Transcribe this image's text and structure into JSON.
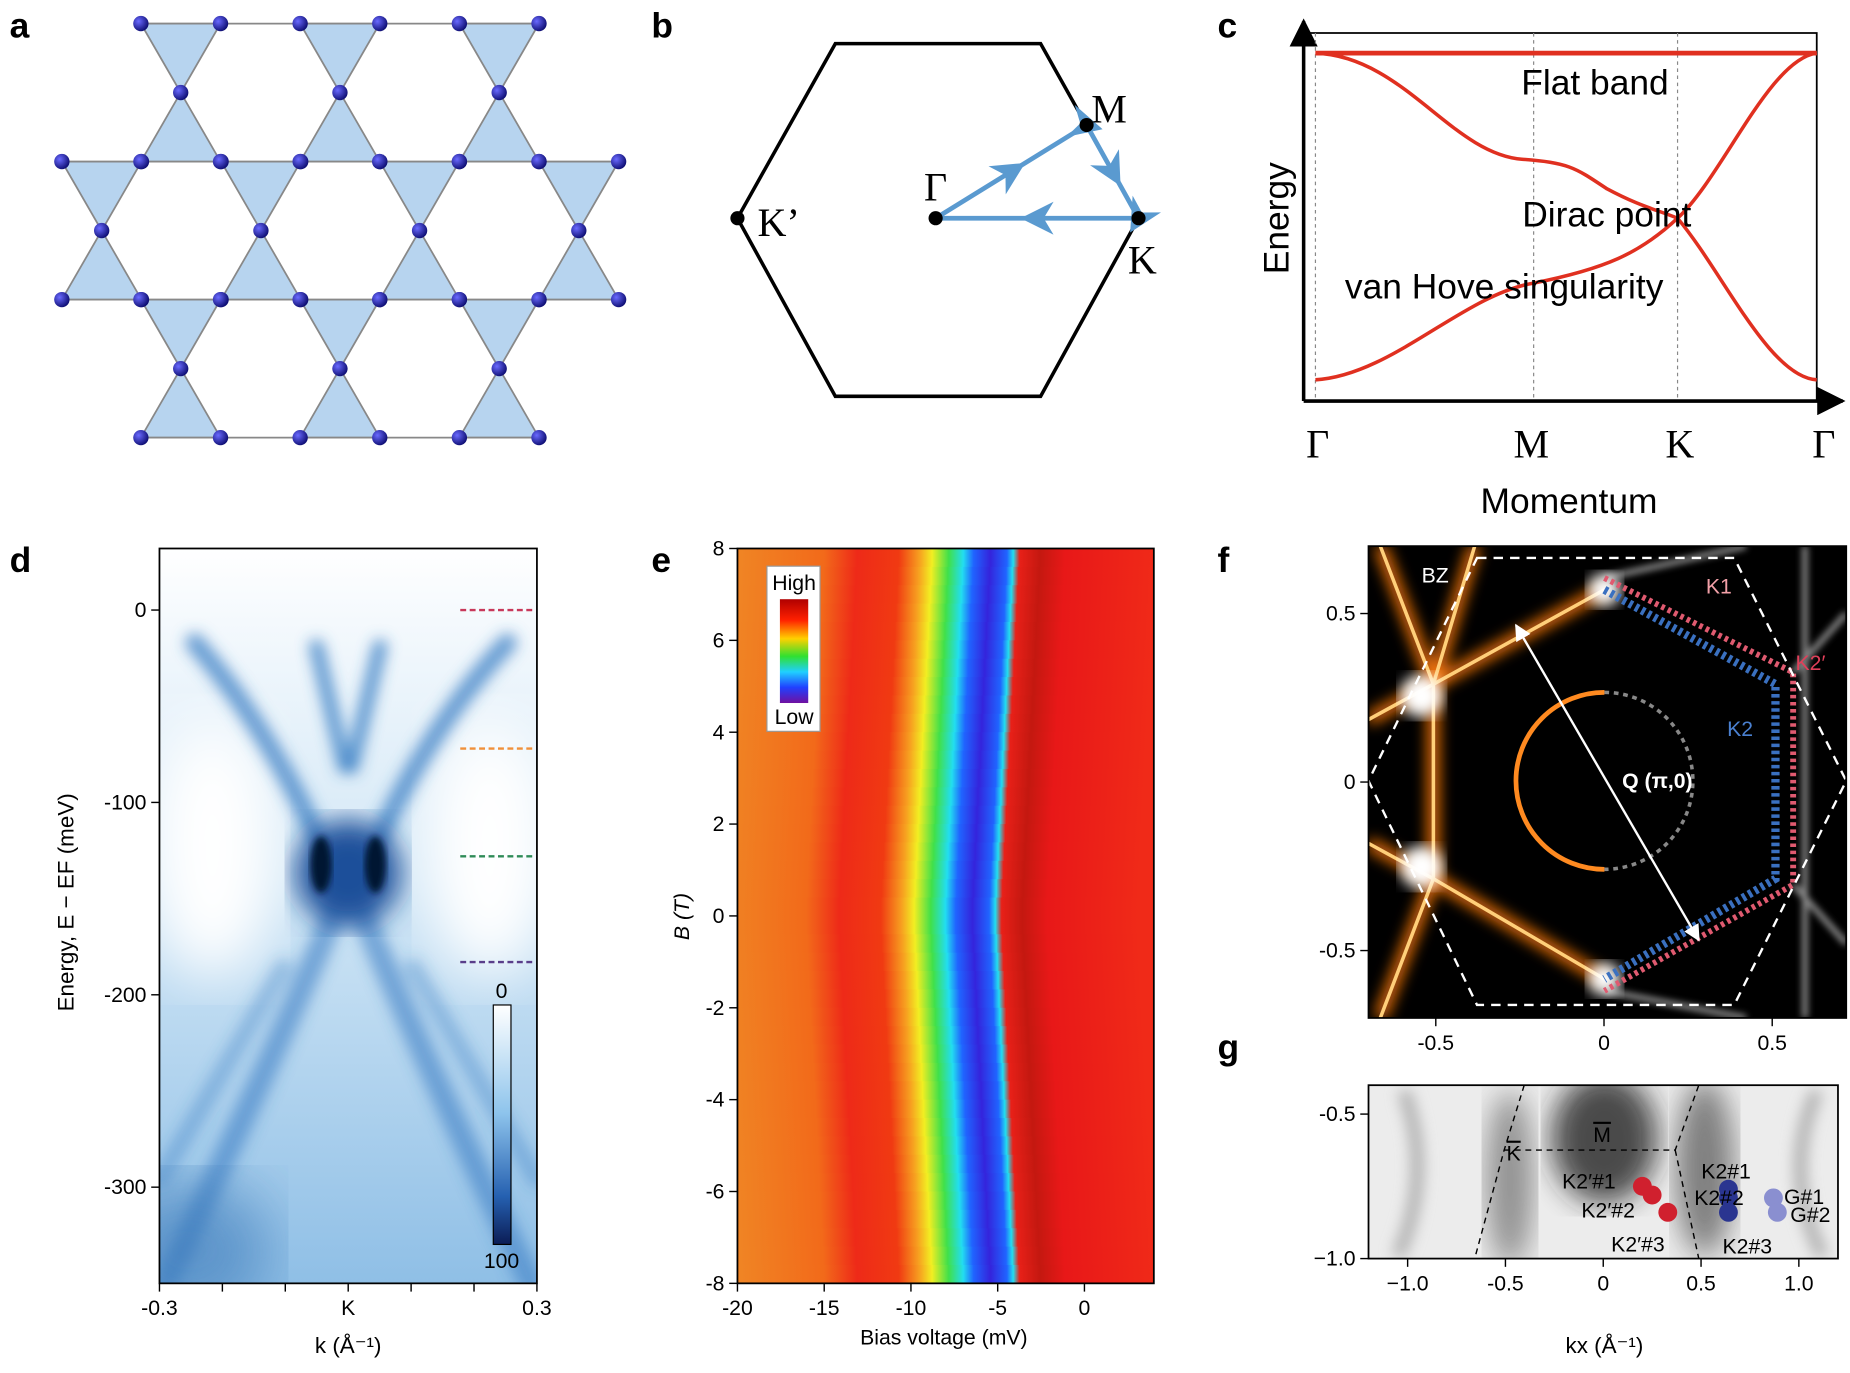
{
  "panels": {
    "a": {
      "label": "a"
    },
    "b": {
      "label": "b",
      "points": {
        "gamma": "Γ",
        "m": "M",
        "k": "K",
        "k_prime": "K’"
      }
    },
    "c": {
      "label": "c",
      "y_label": "Energy",
      "x_label": "Momentum",
      "x_ticks": [
        "Γ",
        "M",
        "K",
        "Γ"
      ],
      "annotations": {
        "flat_band": "Flat band",
        "dirac_point": "Dirac point",
        "van_hove": "van  Hove singularity"
      }
    },
    "d": {
      "label": "d",
      "y_label": "Energy, E − EF (meV)",
      "x_label": "k (Å⁻¹)",
      "xlim": [
        -0.3,
        0.3
      ],
      "xticks": [
        -0.3,
        {
          "value": 0,
          "label": "K"
        },
        0.3
      ],
      "xminor": [
        -0.2,
        -0.1,
        0.1,
        0.2
      ],
      "ylim": [
        -350,
        32
      ],
      "yticks": [
        0,
        -100,
        -200,
        -300
      ],
      "cut_lines": [
        {
          "value": 0,
          "color": "#c8385a"
        },
        {
          "value": -72,
          "color": "#f0903a"
        },
        {
          "value": -128,
          "color": "#2e8b57"
        },
        {
          "value": -183,
          "color": "#5a3e8a"
        }
      ],
      "colorbar_ticks": [
        0,
        100
      ]
    },
    "e": {
      "label": "e",
      "x_label": "Bias voltage (mV)",
      "y_label": "B (T)",
      "xlim": [
        -20,
        4
      ],
      "xticks": [
        -20,
        -15,
        -10,
        -5,
        0
      ],
      "ylim": [
        -8,
        8
      ],
      "yticks": [
        -8,
        -6,
        -4,
        -2,
        0,
        2,
        4,
        6,
        8
      ],
      "colorbar_labels": {
        "high": "High",
        "low": "Low"
      }
    },
    "f": {
      "label": "f",
      "xlim": [
        -0.7,
        0.72
      ],
      "xticks": [
        -0.5,
        0,
        0.5
      ],
      "ylim": [
        -0.7,
        0.7
      ],
      "yticks": [
        -0.5,
        0,
        0.5
      ],
      "annotations": {
        "bz": "BZ",
        "k1": "K1",
        "k2_prime": "K2′",
        "k2": "K2",
        "q": "Q (π,0)"
      }
    },
    "g": {
      "label": "g",
      "x_label": "kx (Å⁻¹)",
      "xlim": [
        -1.2,
        1.2
      ],
      "xticks": [
        {
          "value": -1,
          "label": "−1.0"
        },
        -0.5,
        0,
        0.5,
        {
          "value": 1,
          "label": "1.0"
        }
      ],
      "ylim": [
        -1.0,
        -0.4
      ],
      "yticks": [
        -0.5,
        {
          "value": -1,
          "label": "−1.0"
        }
      ],
      "symmetry_labels": {
        "k": "K",
        "m": "M"
      },
      "points": [
        {
          "name": "K2′#1",
          "x": 0.2,
          "y": -0.75,
          "color": "#d0202e"
        },
        {
          "name": "K2′#2",
          "x": 0.25,
          "y": -0.78,
          "color": "#d0202e"
        },
        {
          "name": "K2′#3",
          "x": 0.33,
          "y": -0.84,
          "color": "#d0202e"
        },
        {
          "name": "K2#1",
          "x": 0.64,
          "y": -0.76,
          "color": "#2a3590"
        },
        {
          "name": "K2#2",
          "x": 0.64,
          "y": -0.79,
          "color": "#2a3590"
        },
        {
          "name": "K2#3",
          "x": 0.64,
          "y": -0.84,
          "color": "#2a3590"
        },
        {
          "name": "G#1",
          "x": 0.87,
          "y": -0.79,
          "color": "#8a8fd0"
        },
        {
          "name": "G#2",
          "x": 0.89,
          "y": -0.84,
          "color": "#8a8fd0"
        }
      ]
    }
  }
}
